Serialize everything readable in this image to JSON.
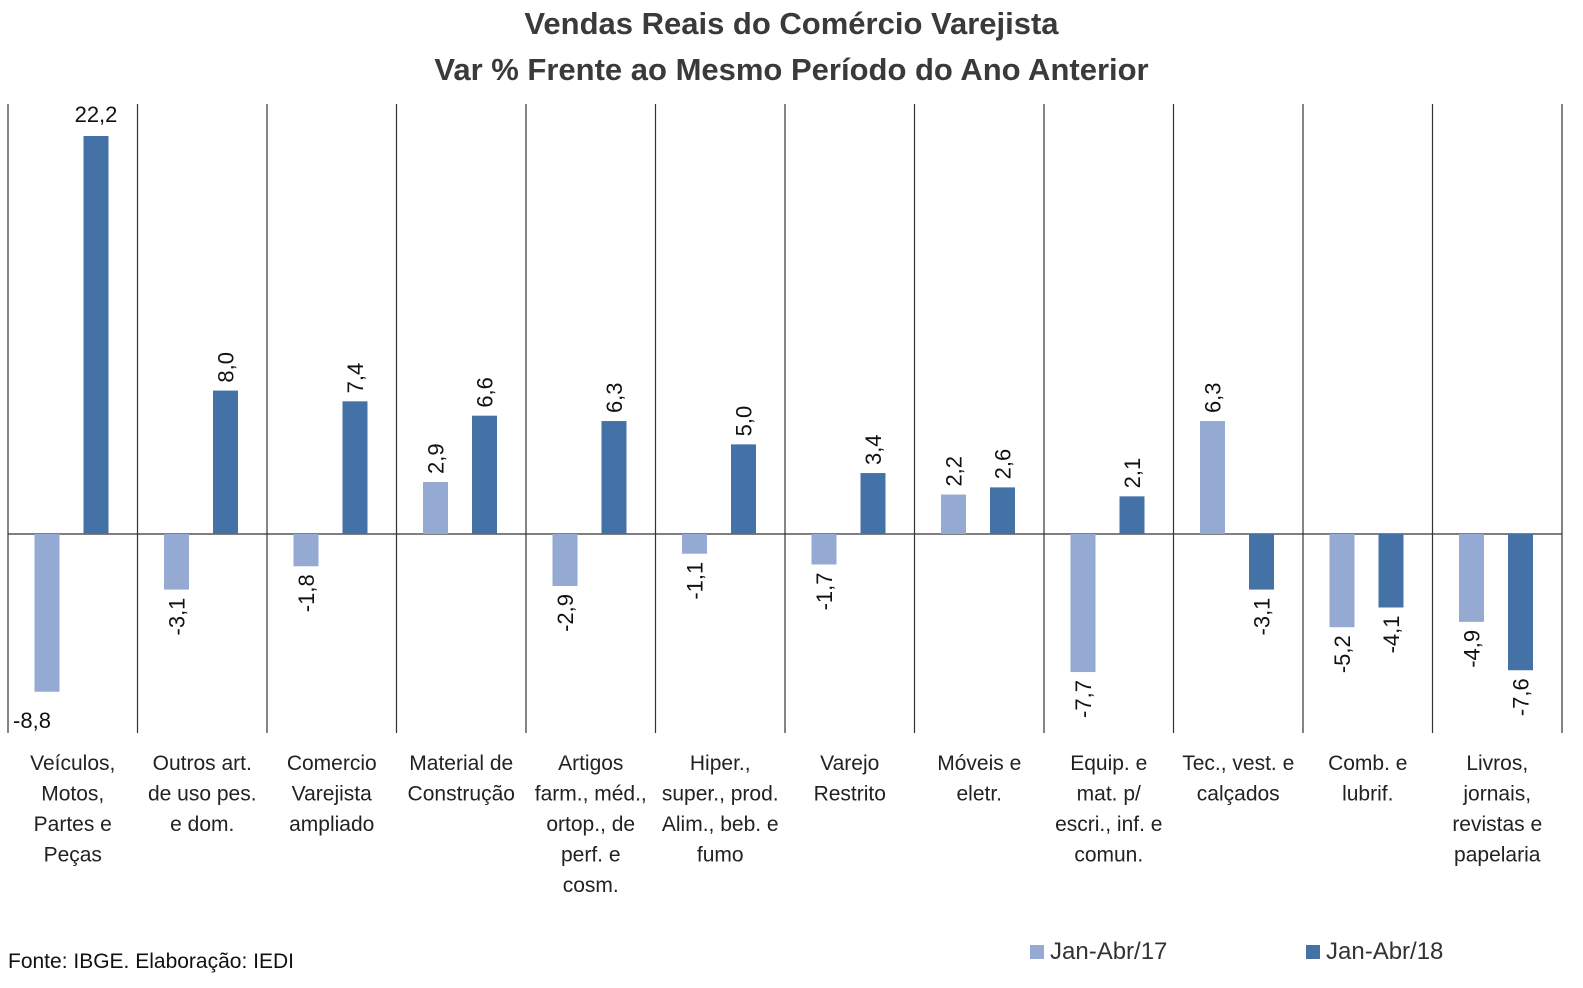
{
  "chart_data": {
    "type": "bar",
    "title": "Vendas Reais do Comércio Varejista",
    "subtitle": "Var % Frente ao Mesmo Período do Ano Anterior",
    "categories": [
      "Veículos, Motos, Partes e Peças",
      "Outros art. de uso pes. e dom.",
      "Comercio Varejista ampliado",
      "Material de Construção",
      "Artigos farm., méd., ortop., de perf. e cosm.",
      "Hiper., super., prod. Alim., beb. e fumo",
      "Varejo Restrito",
      "Móveis e eletr.",
      "Equip. e mat. p/ escri., inf. e comun.",
      "Tec., vest. e calçados",
      "Comb. e lubrif.",
      "Livros, jornais, revistas e papelaria"
    ],
    "category_lines": [
      [
        "Veículos,",
        "Motos,",
        "Partes e",
        "Peças"
      ],
      [
        "Outros art.",
        "de uso pes.",
        "e dom."
      ],
      [
        "Comercio",
        "Varejista",
        "ampliado"
      ],
      [
        "Material de",
        "Construção"
      ],
      [
        "Artigos",
        "farm., méd.,",
        "ortop., de",
        "perf. e",
        "cosm."
      ],
      [
        "Hiper.,",
        "super., prod.",
        "Alim., beb. e",
        "fumo"
      ],
      [
        "Varejo",
        "Restrito"
      ],
      [
        "Móveis e",
        "eletr."
      ],
      [
        "Equip. e",
        "mat. p/",
        "escri., inf. e",
        "comun."
      ],
      [
        "Tec., vest. e",
        "calçados"
      ],
      [
        "Comb. e",
        "lubrif."
      ],
      [
        "Livros,",
        "jornais,",
        "revistas e",
        "papelaria"
      ]
    ],
    "series": [
      {
        "name": "Jan-Abr/17",
        "color": "#95aad3",
        "values": [
          -8.8,
          -3.1,
          -1.8,
          2.9,
          -2.9,
          -1.1,
          -1.7,
          2.2,
          -7.7,
          6.3,
          -5.2,
          -4.9
        ],
        "labels": [
          "-8,8",
          "-3,1",
          "-1,8",
          "2,9",
          "-2,9",
          "-1,1",
          "-1,7",
          "2,2",
          "-7,7",
          "6,3",
          "-5,2",
          "-4,9"
        ]
      },
      {
        "name": "Jan-Abr/18",
        "color": "#4472a6",
        "values": [
          22.2,
          8.0,
          7.4,
          6.6,
          6.3,
          5.0,
          3.4,
          2.6,
          2.1,
          -3.1,
          -4.1,
          -7.6
        ],
        "labels": [
          "22,2",
          "8,0",
          "7,4",
          "6,6",
          "6,3",
          "5,0",
          "3,4",
          "2,6",
          "2,1",
          "-3,1",
          "-4,1",
          "-7,6"
        ]
      }
    ],
    "ylim": [
      -11,
      24
    ],
    "legend": "bottom-right",
    "source": "Fonte: IBGE. Elaboração: IEDI"
  }
}
